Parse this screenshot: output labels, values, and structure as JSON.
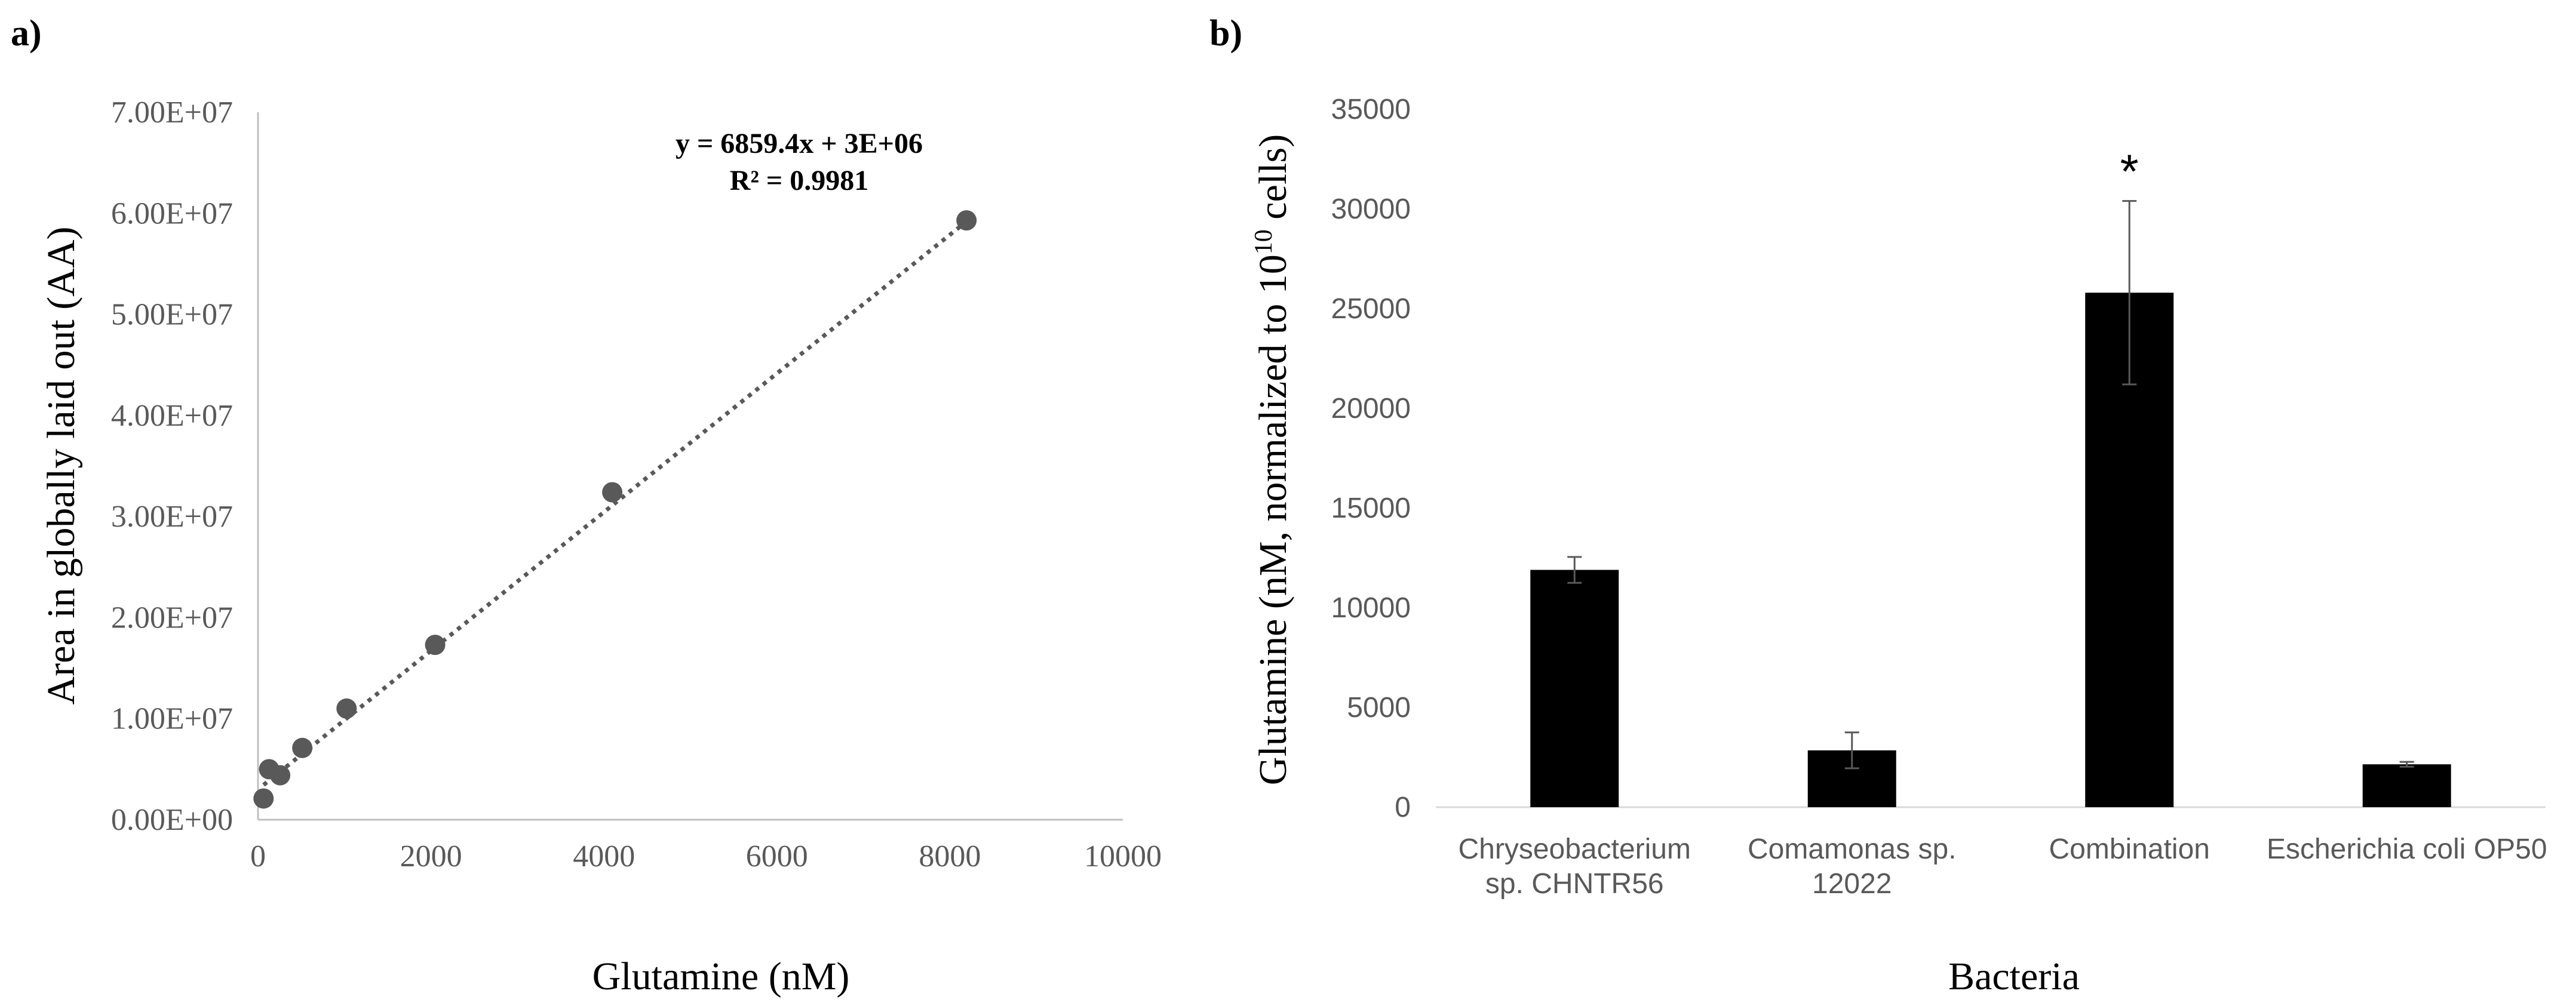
{
  "chart_data": [
    {
      "panel_label": "a)",
      "type": "scatter",
      "xlabel": "Glutamine (nM)",
      "ylabel": "Area in globally laid out (AA)",
      "xlim": [
        0,
        10000
      ],
      "ylim": [
        0,
        70000000
      ],
      "xticks": [
        0,
        2000,
        4000,
        6000,
        8000,
        10000
      ],
      "xtick_labels": [
        "0",
        "2000",
        "4000",
        "6000",
        "8000",
        "10000"
      ],
      "yticks": [
        0,
        10000000,
        20000000,
        30000000,
        40000000,
        50000000,
        60000000,
        70000000
      ],
      "ytick_labels": [
        "0.00E+00",
        "1.00E+07",
        "2.00E+07",
        "3.00E+07",
        "4.00E+07",
        "5.00E+07",
        "6.00E+07",
        "7.00E+07"
      ],
      "x": [
        64,
        128,
        256,
        512,
        1024,
        2048,
        4096,
        8192
      ],
      "y": [
        2100000,
        5000000,
        4400000,
        7100000,
        11000000,
        17300000,
        32400000,
        59300000
      ],
      "trendline": {
        "slope": 6859.4,
        "intercept": 3000000,
        "x_range": [
          64,
          8192
        ],
        "style": "dotted"
      },
      "equation": "y = 6859.4x + 3E+06",
      "r_squared": "R² = 0.9981",
      "marker_color": "#595959",
      "grid": false
    },
    {
      "panel_label": "b)",
      "type": "bar",
      "xlabel": "Bacteria",
      "ylabel_main": "Glutamine  (nM, normalized to 10",
      "ylabel_sup": "10",
      "ylabel_end": " cells)",
      "ylim": [
        0,
        35000
      ],
      "yticks": [
        0,
        5000,
        10000,
        15000,
        20000,
        25000,
        30000,
        35000
      ],
      "ytick_labels": [
        "0",
        "5000",
        "10000",
        "15000",
        "20000",
        "25000",
        "30000",
        "35000"
      ],
      "categories": [
        [
          "Chryseobacterium",
          "sp. CHNTR56"
        ],
        [
          "Comamonas sp.",
          "12022"
        ],
        [
          "Combination"
        ],
        [
          "Escherichia coli OP50"
        ]
      ],
      "values": [
        11900,
        2850,
        25800,
        2150
      ],
      "errors": [
        650,
        900,
        4600,
        120
      ],
      "significance": [
        "",
        "",
        "*",
        ""
      ],
      "bar_color": "#000000",
      "grid": false
    }
  ]
}
